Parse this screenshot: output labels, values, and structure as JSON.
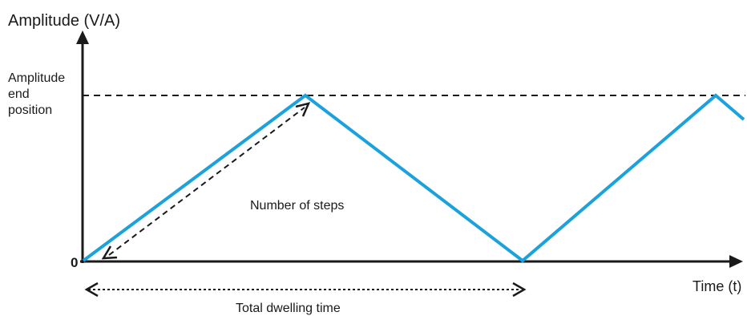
{
  "y_axis_label": "Amplitude (V/A)",
  "x_axis_label": "Time (t)",
  "origin_label": "0",
  "end_position_label": [
    "Amplitude",
    "end",
    "position"
  ],
  "steps_label": "Number of steps",
  "dwelling_label": "Total dwelling time",
  "colors": {
    "waveform": "#1ba1dc",
    "axis": "#1a1a1a"
  }
}
